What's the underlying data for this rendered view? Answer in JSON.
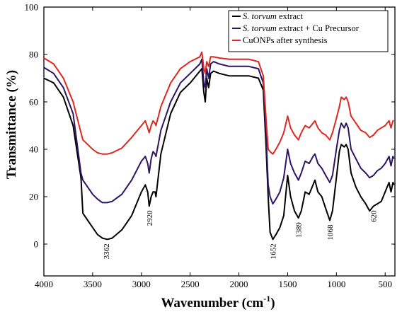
{
  "chart_data": {
    "type": "line",
    "xlabel": "Wavenumber (cm",
    "xlabel_sup": "-1",
    "xlabel_end": ")",
    "ylabel": "Transmittance (%)",
    "xlim": [
      4000,
      400
    ],
    "ylim": [
      0,
      100
    ],
    "x_reversed": true,
    "grid": false,
    "legend_position": "top-right",
    "x_ticks": [
      4000,
      3500,
      3000,
      2500,
      2000,
      1500,
      1000,
      500
    ],
    "y_ticks": [
      0,
      20,
      40,
      60,
      80,
      100
    ],
    "series": [
      {
        "name_italic": "S. torvum",
        "name_rest": " extract",
        "color": "#000000",
        "points": [
          [
            4000,
            70
          ],
          [
            3900,
            68
          ],
          [
            3800,
            62
          ],
          [
            3700,
            50
          ],
          [
            3620,
            28
          ],
          [
            3600,
            13
          ],
          [
            3550,
            10
          ],
          [
            3500,
            7
          ],
          [
            3450,
            4
          ],
          [
            3400,
            2.5
          ],
          [
            3350,
            2
          ],
          [
            3300,
            2.5
          ],
          [
            3200,
            6
          ],
          [
            3100,
            12
          ],
          [
            3000,
            22
          ],
          [
            2960,
            25
          ],
          [
            2935,
            22
          ],
          [
            2920,
            16
          ],
          [
            2900,
            20
          ],
          [
            2880,
            22
          ],
          [
            2860,
            22
          ],
          [
            2850,
            20
          ],
          [
            2800,
            38
          ],
          [
            2700,
            55
          ],
          [
            2600,
            64
          ],
          [
            2500,
            68
          ],
          [
            2400,
            73
          ],
          [
            2380,
            74
          ],
          [
            2360,
            64
          ],
          [
            2345,
            60
          ],
          [
            2330,
            70
          ],
          [
            2310,
            66
          ],
          [
            2290,
            72
          ],
          [
            2260,
            73
          ],
          [
            2200,
            72
          ],
          [
            2100,
            71
          ],
          [
            2000,
            71
          ],
          [
            1900,
            71
          ],
          [
            1800,
            70
          ],
          [
            1750,
            65
          ],
          [
            1720,
            40
          ],
          [
            1700,
            20
          ],
          [
            1680,
            5
          ],
          [
            1652,
            2
          ],
          [
            1620,
            4
          ],
          [
            1580,
            7
          ],
          [
            1540,
            12
          ],
          [
            1500,
            29
          ],
          [
            1470,
            20
          ],
          [
            1430,
            14
          ],
          [
            1389,
            11
          ],
          [
            1360,
            14
          ],
          [
            1320,
            22
          ],
          [
            1280,
            21
          ],
          [
            1240,
            25
          ],
          [
            1220,
            27
          ],
          [
            1190,
            22
          ],
          [
            1150,
            20
          ],
          [
            1110,
            15
          ],
          [
            1068,
            10
          ],
          [
            1040,
            14
          ],
          [
            1000,
            28
          ],
          [
            970,
            39
          ],
          [
            950,
            42
          ],
          [
            920,
            41
          ],
          [
            900,
            42
          ],
          [
            880,
            40
          ],
          [
            850,
            30
          ],
          [
            800,
            24
          ],
          [
            750,
            20
          ],
          [
            700,
            17
          ],
          [
            660,
            14
          ],
          [
            620,
            16
          ],
          [
            580,
            17
          ],
          [
            540,
            18
          ],
          [
            500,
            22
          ],
          [
            460,
            26
          ],
          [
            440,
            22
          ],
          [
            420,
            26
          ],
          [
            410,
            25
          ]
        ]
      },
      {
        "name_italic": "S. torvum",
        "name_rest": " extract + Cu Precursor",
        "color": "#2a1466",
        "points": [
          [
            4000,
            74.5
          ],
          [
            3900,
            72
          ],
          [
            3800,
            66
          ],
          [
            3700,
            55
          ],
          [
            3620,
            30
          ],
          [
            3600,
            27
          ],
          [
            3550,
            24
          ],
          [
            3500,
            21
          ],
          [
            3450,
            19
          ],
          [
            3400,
            17.5
          ],
          [
            3350,
            17.5
          ],
          [
            3300,
            18
          ],
          [
            3200,
            21
          ],
          [
            3100,
            27
          ],
          [
            3000,
            35
          ],
          [
            2960,
            37
          ],
          [
            2935,
            34
          ],
          [
            2920,
            30
          ],
          [
            2900,
            36
          ],
          [
            2880,
            39
          ],
          [
            2860,
            38
          ],
          [
            2850,
            37
          ],
          [
            2800,
            48
          ],
          [
            2700,
            60
          ],
          [
            2600,
            68
          ],
          [
            2500,
            72
          ],
          [
            2400,
            76
          ],
          [
            2380,
            78
          ],
          [
            2360,
            68
          ],
          [
            2345,
            66
          ],
          [
            2330,
            74
          ],
          [
            2310,
            70
          ],
          [
            2290,
            76
          ],
          [
            2260,
            77
          ],
          [
            2200,
            76
          ],
          [
            2100,
            75
          ],
          [
            2000,
            75
          ],
          [
            1900,
            75
          ],
          [
            1800,
            74
          ],
          [
            1750,
            68
          ],
          [
            1720,
            45
          ],
          [
            1700,
            25
          ],
          [
            1680,
            20
          ],
          [
            1652,
            17
          ],
          [
            1620,
            19
          ],
          [
            1580,
            22
          ],
          [
            1540,
            28
          ],
          [
            1500,
            40
          ],
          [
            1470,
            34
          ],
          [
            1430,
            30
          ],
          [
            1389,
            27
          ],
          [
            1360,
            30
          ],
          [
            1320,
            35
          ],
          [
            1280,
            34
          ],
          [
            1240,
            37
          ],
          [
            1220,
            38
          ],
          [
            1190,
            34
          ],
          [
            1150,
            32
          ],
          [
            1110,
            29
          ],
          [
            1068,
            26
          ],
          [
            1040,
            29
          ],
          [
            1000,
            40
          ],
          [
            970,
            48
          ],
          [
            950,
            51
          ],
          [
            920,
            49
          ],
          [
            900,
            51
          ],
          [
            880,
            49
          ],
          [
            850,
            40
          ],
          [
            800,
            36
          ],
          [
            750,
            32
          ],
          [
            700,
            30
          ],
          [
            660,
            28
          ],
          [
            620,
            29
          ],
          [
            580,
            31
          ],
          [
            540,
            32
          ],
          [
            500,
            34
          ],
          [
            460,
            37
          ],
          [
            440,
            33
          ],
          [
            420,
            37
          ],
          [
            410,
            36
          ]
        ]
      },
      {
        "name": "CuONPs after synthesis",
        "color": "#e0271f",
        "points": [
          [
            4000,
            78.5
          ],
          [
            3900,
            76
          ],
          [
            3800,
            70
          ],
          [
            3700,
            60
          ],
          [
            3620,
            47
          ],
          [
            3600,
            44
          ],
          [
            3550,
            42
          ],
          [
            3500,
            40
          ],
          [
            3450,
            38.5
          ],
          [
            3400,
            38
          ],
          [
            3350,
            38
          ],
          [
            3300,
            38.5
          ],
          [
            3200,
            40.5
          ],
          [
            3100,
            45
          ],
          [
            3000,
            50
          ],
          [
            2960,
            52
          ],
          [
            2935,
            49
          ],
          [
            2920,
            47
          ],
          [
            2900,
            50
          ],
          [
            2880,
            52
          ],
          [
            2860,
            51
          ],
          [
            2850,
            50
          ],
          [
            2800,
            58
          ],
          [
            2700,
            68
          ],
          [
            2600,
            74
          ],
          [
            2500,
            77
          ],
          [
            2400,
            79
          ],
          [
            2380,
            81
          ],
          [
            2360,
            74
          ],
          [
            2345,
            72
          ],
          [
            2330,
            77
          ],
          [
            2310,
            75
          ],
          [
            2290,
            79
          ],
          [
            2260,
            79
          ],
          [
            2200,
            78.5
          ],
          [
            2100,
            78
          ],
          [
            2000,
            78
          ],
          [
            1900,
            78
          ],
          [
            1800,
            77
          ],
          [
            1750,
            71
          ],
          [
            1720,
            52
          ],
          [
            1700,
            40
          ],
          [
            1680,
            39
          ],
          [
            1652,
            38
          ],
          [
            1620,
            40
          ],
          [
            1580,
            43
          ],
          [
            1540,
            47
          ],
          [
            1500,
            54
          ],
          [
            1470,
            49
          ],
          [
            1430,
            46
          ],
          [
            1389,
            44
          ],
          [
            1360,
            47
          ],
          [
            1320,
            50
          ],
          [
            1280,
            49
          ],
          [
            1240,
            51
          ],
          [
            1220,
            52
          ],
          [
            1190,
            49
          ],
          [
            1150,
            47
          ],
          [
            1110,
            46
          ],
          [
            1068,
            44
          ],
          [
            1040,
            47
          ],
          [
            1000,
            53
          ],
          [
            970,
            58
          ],
          [
            950,
            62
          ],
          [
            920,
            61
          ],
          [
            900,
            62
          ],
          [
            880,
            60
          ],
          [
            850,
            54
          ],
          [
            800,
            51
          ],
          [
            750,
            48
          ],
          [
            700,
            47
          ],
          [
            660,
            45
          ],
          [
            620,
            46
          ],
          [
            580,
            48
          ],
          [
            540,
            49
          ],
          [
            500,
            50
          ],
          [
            460,
            52
          ],
          [
            440,
            49
          ],
          [
            420,
            52
          ],
          [
            410,
            52
          ]
        ]
      }
    ],
    "peak_labels": [
      {
        "text": "3362",
        "x": 3362,
        "y": 2
      },
      {
        "text": "2920",
        "x": 2920,
        "y": 16
      },
      {
        "text": "1652",
        "x": 1652,
        "y": 2
      },
      {
        "text": "1389",
        "x": 1389,
        "y": 11
      },
      {
        "text": "1068",
        "x": 1068,
        "y": 10
      },
      {
        "text": "620",
        "x": 620,
        "y": 16
      }
    ]
  }
}
